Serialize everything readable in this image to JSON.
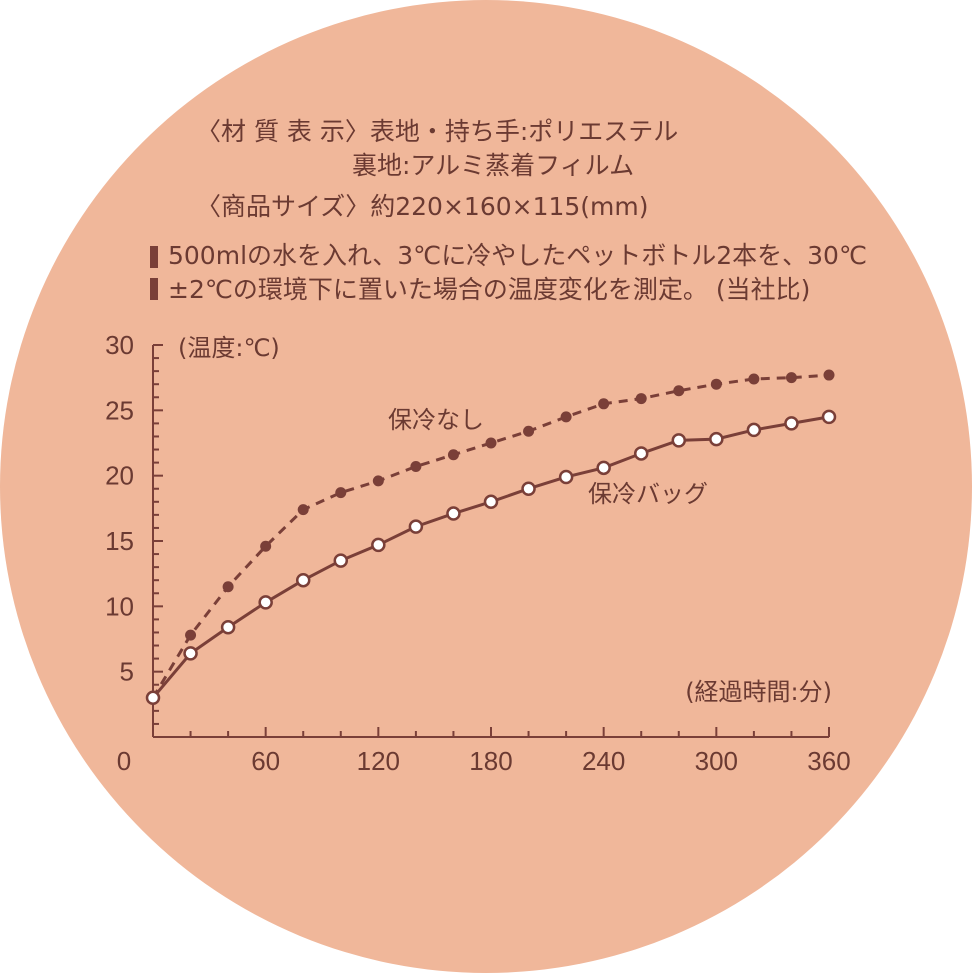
{
  "spec": {
    "line1": "〈材 質 表 示〉表地・持ち手:ポリエステル",
    "line2": "裏地:アルミ蒸着フィルム",
    "line3": "〈商品サイズ〉約220×160×115(mm)"
  },
  "note": {
    "line1": "500mlの水を入れ、3℃に冷やしたペットボトル2本を、30℃",
    "line2": "±2℃の環境下に置いた場合の温度変化を測定。 (当社比)"
  },
  "colors": {
    "background": "#f0b79a",
    "ink": "#7a3f38",
    "text": "#6b3a32"
  },
  "chart_data": {
    "type": "line",
    "ylabel": "(温度:℃)",
    "xlabel": "(経過時間:分)",
    "xlim": [
      0,
      360
    ],
    "ylim": [
      0,
      30
    ],
    "xticks": [
      0,
      60,
      120,
      180,
      240,
      300,
      360
    ],
    "yticks": [
      5,
      10,
      15,
      20,
      25,
      30
    ],
    "grid": false,
    "x": [
      0,
      20,
      40,
      60,
      80,
      100,
      120,
      140,
      160,
      180,
      200,
      220,
      240,
      260,
      280,
      300,
      320,
      340,
      360
    ],
    "series": [
      {
        "name": "保冷なし",
        "style": "dashed",
        "marker": "filled",
        "values": [
          3,
          7.8,
          11.5,
          14.6,
          17.4,
          18.7,
          19.6,
          20.7,
          21.6,
          22.5,
          23.4,
          24.5,
          25.5,
          25.9,
          26.5,
          27.0,
          27.4,
          27.5,
          27.7
        ]
      },
      {
        "name": "保冷バッグ",
        "style": "solid",
        "marker": "open",
        "values": [
          3,
          6.4,
          8.4,
          10.3,
          12.0,
          13.5,
          14.7,
          16.1,
          17.1,
          18.0,
          19.0,
          19.9,
          20.6,
          21.7,
          22.7,
          22.8,
          23.5,
          24.0,
          24.5
        ]
      }
    ]
  }
}
